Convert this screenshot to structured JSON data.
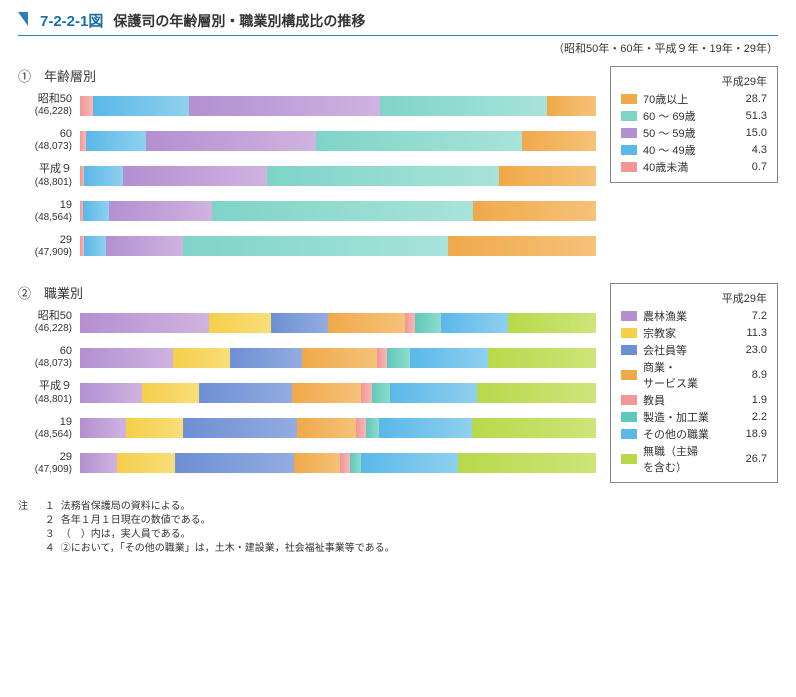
{
  "figure_number": "7-2-2-1図",
  "figure_title": "保護司の年齢層別・職業別構成比の推移",
  "subtitle": "（昭和50年・60年・平成９年・19年・29年）",
  "section1": {
    "heading": "①　年齢層別",
    "rows": [
      {
        "year": "昭和50",
        "count": "(46,228)",
        "values": [
          2.6,
          18.5,
          37.0,
          32.5,
          9.4
        ]
      },
      {
        "year": "60",
        "count": "(48,073)",
        "values": [
          1.2,
          11.5,
          33.0,
          40.0,
          14.3
        ]
      },
      {
        "year": "平成９",
        "count": "(48,801)",
        "values": [
          0.8,
          7.5,
          28.0,
          45.0,
          18.7
        ]
      },
      {
        "year": "19",
        "count": "(48,564)",
        "values": [
          0.6,
          5.0,
          20.0,
          50.5,
          23.9
        ]
      },
      {
        "year": "29",
        "count": "(47,909)",
        "values": [
          0.7,
          4.3,
          15.0,
          51.3,
          28.7
        ]
      }
    ],
    "colors": [
      "#f29696",
      "#5ab8e8",
      "#b48fd1",
      "#7fd4c8",
      "#f0a94a"
    ],
    "gradients": [
      [
        "#f29696",
        "#f7b8b8"
      ],
      [
        "#5ab8e8",
        "#8fd0ef"
      ],
      [
        "#b48fd1",
        "#cfb3e0"
      ],
      [
        "#7fd4c8",
        "#a8e3da"
      ],
      [
        "#f0a94a",
        "#f5c27a"
      ]
    ]
  },
  "legend1": {
    "title": "平成29年",
    "items": [
      {
        "color": "#f0a94a",
        "label": "70歳以上",
        "value": "28.7"
      },
      {
        "color": "#7fd4c8",
        "label": "60 ～ 69歳",
        "value": "51.3"
      },
      {
        "color": "#b48fd1",
        "label": "50 ～ 59歳",
        "value": "15.0"
      },
      {
        "color": "#5ab8e8",
        "label": "40 ～ 49歳",
        "value": "4.3"
      },
      {
        "color": "#f29696",
        "label": "40歳未満",
        "value": "0.7"
      }
    ]
  },
  "section2": {
    "heading": "②　職業別",
    "rows": [
      {
        "year": "昭和50",
        "count": "(46,228)",
        "values": [
          25.0,
          12.0,
          11.0,
          15.0,
          2.0,
          5.0,
          13.0,
          17.0
        ]
      },
      {
        "year": "60",
        "count": "(48,073)",
        "values": [
          18.0,
          11.0,
          14.0,
          14.5,
          2.0,
          4.5,
          15.0,
          21.0
        ]
      },
      {
        "year": "平成９",
        "count": "(48,801)",
        "values": [
          12.0,
          11.0,
          18.0,
          13.5,
          2.0,
          3.5,
          17.0,
          23.0
        ]
      },
      {
        "year": "19",
        "count": "(48,564)",
        "values": [
          9.0,
          11.0,
          22.0,
          11.5,
          2.0,
          2.5,
          18.0,
          24.0
        ]
      },
      {
        "year": "29",
        "count": "(47,909)",
        "values": [
          7.2,
          11.3,
          23.0,
          8.9,
          1.9,
          2.2,
          18.9,
          26.7
        ]
      }
    ],
    "colors": [
      "#b48fd1",
      "#f5cf4a",
      "#6d8fd4",
      "#f0a94a",
      "#f29696",
      "#5fc9b8",
      "#5ab8e8",
      "#b8d94a"
    ],
    "gradients": [
      [
        "#b48fd1",
        "#cfb3e0"
      ],
      [
        "#f5cf4a",
        "#f8de7a"
      ],
      [
        "#6d8fd4",
        "#93ace0"
      ],
      [
        "#f0a94a",
        "#f5c27a"
      ],
      [
        "#f29696",
        "#f7b8b8"
      ],
      [
        "#5fc9b8",
        "#8fdccf"
      ],
      [
        "#5ab8e8",
        "#8fd0ef"
      ],
      [
        "#b8d94a",
        "#cde57a"
      ]
    ]
  },
  "legend2": {
    "title": "平成29年",
    "items": [
      {
        "color": "#b48fd1",
        "label": "農林漁業",
        "value": "7.2"
      },
      {
        "color": "#f5cf4a",
        "label": "宗教家",
        "value": "11.3"
      },
      {
        "color": "#6d8fd4",
        "label": "会社員等",
        "value": "23.0"
      },
      {
        "color": "#f0a94a",
        "label": "商業・\nサービス業",
        "value": "8.9"
      },
      {
        "color": "#f29696",
        "label": "教員",
        "value": "1.9"
      },
      {
        "color": "#5fc9b8",
        "label": "製造・加工業",
        "value": "2.2"
      },
      {
        "color": "#5ab8e8",
        "label": "その他の職業",
        "value": "18.9"
      },
      {
        "color": "#b8d94a",
        "label": "無職（主婦\nを含む）",
        "value": "26.7"
      }
    ]
  },
  "notes": {
    "head": "注",
    "lines": [
      {
        "n": "１",
        "t": "法務省保護局の資料による。"
      },
      {
        "n": "２",
        "t": "各年１月１日現在の数値である。"
      },
      {
        "n": "３",
        "t": "（　）内は，実人員である。"
      },
      {
        "n": "４",
        "t": "②において，「その他の職業」は，土木・建設業，社会福祉事業等である。"
      }
    ]
  }
}
